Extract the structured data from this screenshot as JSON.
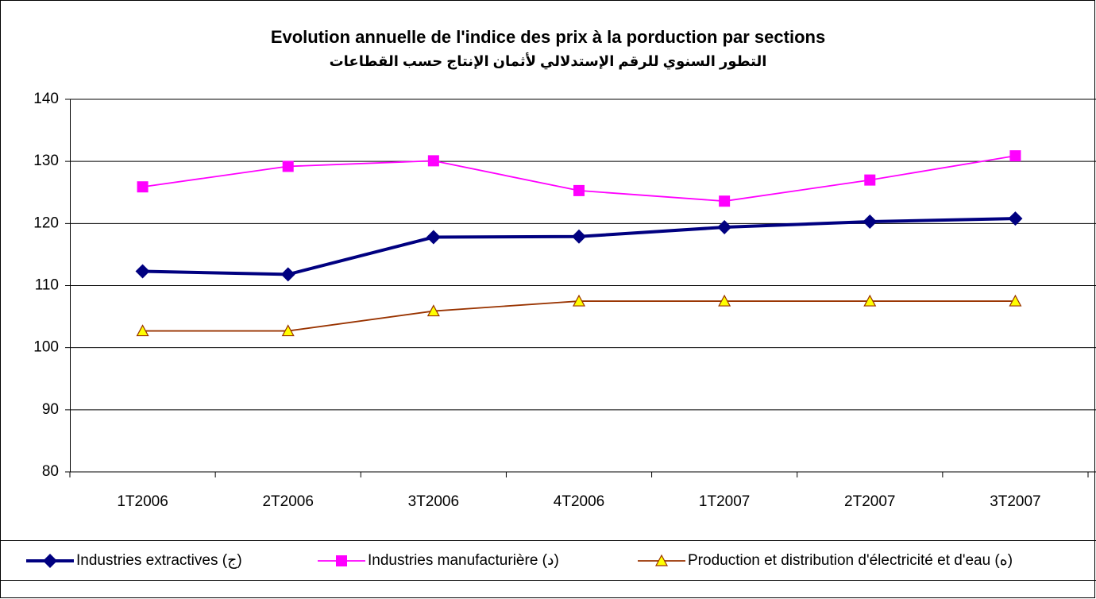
{
  "chart_data": {
    "type": "line",
    "title": "Evolution annuelle de l'indice des prix à la porduction par sections",
    "subtitle": "التطور السنوي للرقم الإستدلالي لأثمان الإنتاج حسب القطاعات",
    "categories": [
      "1T2006",
      "2T2006",
      "3T2006",
      "4T2006",
      "1T2007",
      "2T2007",
      "3T2007"
    ],
    "series": [
      {
        "name": "Industries extractives (ج)",
        "color": "#000080",
        "marker": "diamond",
        "values": [
          112.3,
          111.8,
          117.8,
          117.9,
          119.4,
          120.3,
          120.8
        ]
      },
      {
        "name": "Industries manufacturière (د)",
        "color": "#ff00ff",
        "marker": "square",
        "values": [
          125.9,
          129.2,
          130.1,
          125.3,
          123.6,
          127.0,
          130.9
        ]
      },
      {
        "name": "Production et distribution d'électricité et d'eau (ه)",
        "color": "#993300",
        "marker": "triangle",
        "marker_fill": "#ffff00",
        "values": [
          102.7,
          102.7,
          105.9,
          107.5,
          107.5,
          107.5,
          107.5
        ]
      }
    ],
    "ylim": [
      80,
      140
    ],
    "yticks": [
      80,
      90,
      100,
      110,
      120,
      130,
      140
    ],
    "grid": true,
    "legend": "bottom"
  }
}
